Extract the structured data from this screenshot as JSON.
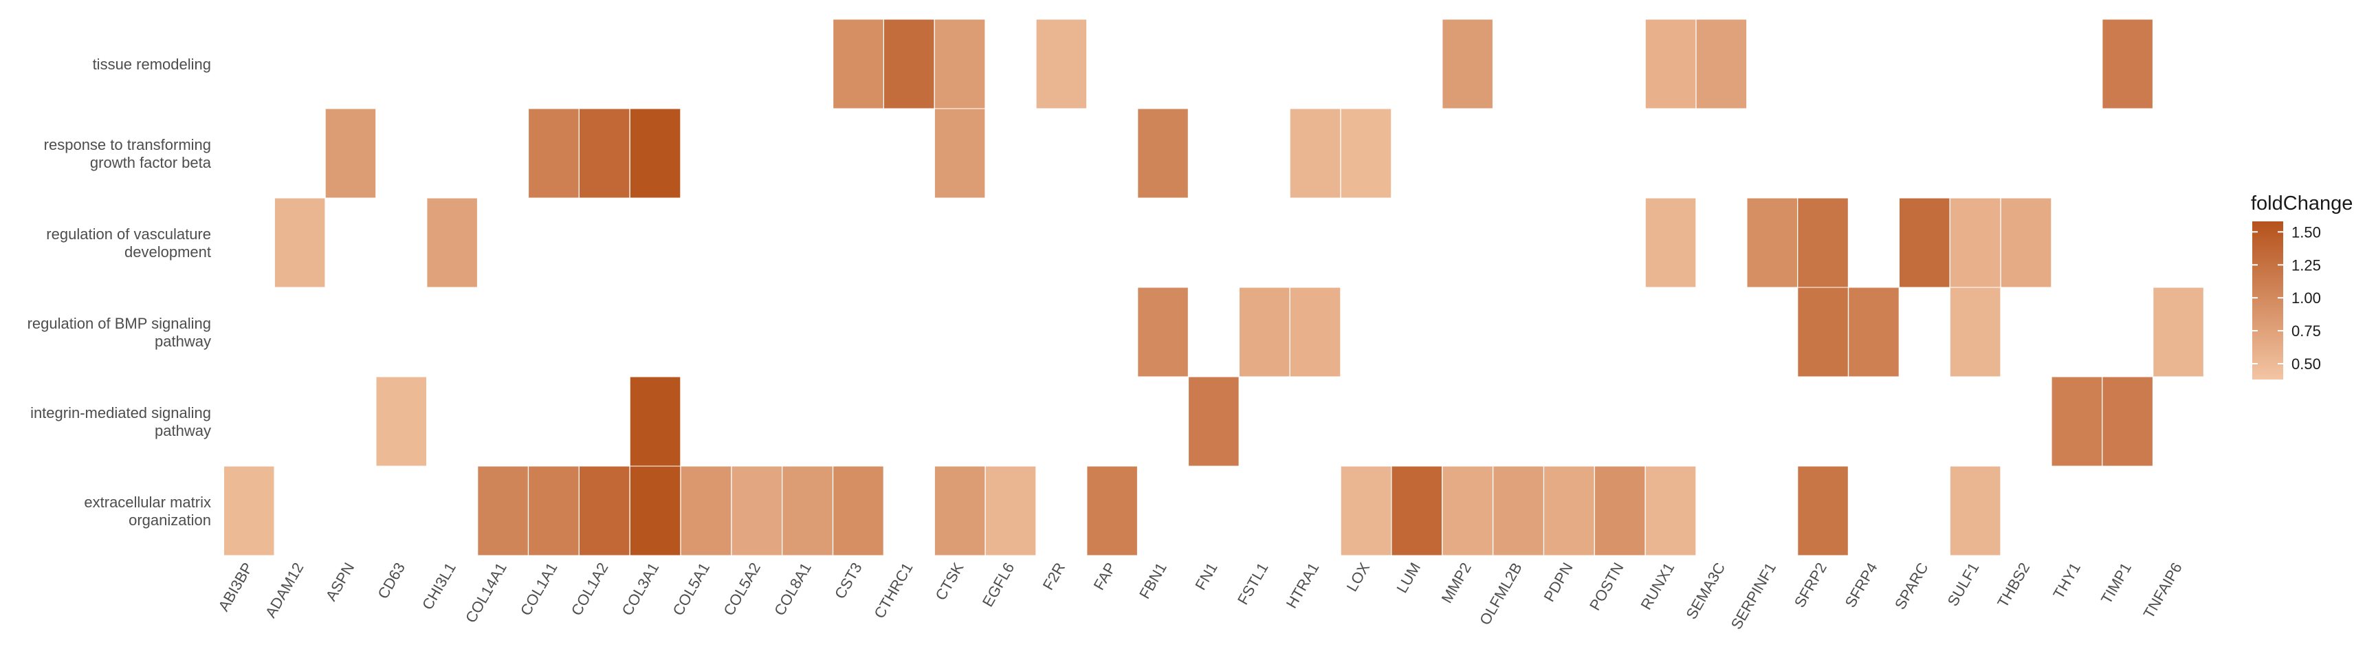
{
  "chart_data": {
    "type": "heatmap",
    "legend": {
      "title": "foldChange",
      "ticks": [
        0.5,
        0.75,
        1.0,
        1.25,
        1.5
      ],
      "tick_labels": [
        "0.50",
        "0.75",
        "1.00",
        "1.25",
        "1.50"
      ],
      "range": [
        0.38,
        1.58
      ],
      "low_color": "#f3c5a4",
      "high_color": "#b5521c",
      "placement": "right"
    },
    "genes": [
      "ABI3BP",
      "ADAM12",
      "ASPN",
      "CD63",
      "CHI3L1",
      "COL14A1",
      "COL1A1",
      "COL1A2",
      "COL3A1",
      "COL5A1",
      "COL5A2",
      "COL8A1",
      "CST3",
      "CTHRC1",
      "CTSK",
      "EGFL6",
      "F2R",
      "FAP",
      "FBN1",
      "FN1",
      "FSTL1",
      "HTRA1",
      "LOX",
      "LUM",
      "MMP2",
      "OLFML2B",
      "PDPN",
      "POSTN",
      "RUNX1",
      "SEMA3C",
      "SERPINF1",
      "SFRP2",
      "SFRP4",
      "SPARC",
      "SULF1",
      "THBS2",
      "THY1",
      "TIMP1",
      "TNFAIP6"
    ],
    "terms": [
      {
        "label": [
          "tissue remodeling"
        ],
        "cells": [
          [
            "CST3",
            0.95
          ],
          [
            "CTHRC1",
            1.3
          ],
          [
            "CTSK",
            0.8
          ],
          [
            "F2R",
            0.55
          ],
          [
            "MMP2",
            0.8
          ],
          [
            "RUNX1",
            0.6
          ],
          [
            "SEMA3C",
            0.75
          ],
          [
            "TIMP1",
            1.15
          ]
        ]
      },
      {
        "label": [
          "response to transforming",
          "growth factor beta"
        ],
        "cells": [
          [
            "ASPN",
            0.8
          ],
          [
            "COL1A1",
            1.1
          ],
          [
            "COL1A2",
            1.35
          ],
          [
            "COL3A1",
            1.55
          ],
          [
            "CTSK",
            0.8
          ],
          [
            "FBN1",
            1.05
          ],
          [
            "HTRA1",
            0.55
          ],
          [
            "LOX",
            0.5
          ]
        ]
      },
      {
        "label": [
          "regulation of vasculature",
          "development"
        ],
        "cells": [
          [
            "ADAM12",
            0.55
          ],
          [
            "CHI3L1",
            0.75
          ],
          [
            "RUNX1",
            0.55
          ],
          [
            "SERPINF1",
            0.95
          ],
          [
            "SFRP2",
            1.2
          ],
          [
            "SPARC",
            1.3
          ],
          [
            "SULF1",
            0.6
          ],
          [
            "THBS2",
            0.65
          ]
        ]
      },
      {
        "label": [
          "regulation of BMP signaling",
          "pathway"
        ],
        "cells": [
          [
            "FBN1",
            1.0
          ],
          [
            "FSTL1",
            0.65
          ],
          [
            "HTRA1",
            0.6
          ],
          [
            "SFRP2",
            1.2
          ],
          [
            "SFRP4",
            1.1
          ],
          [
            "SULF1",
            0.55
          ],
          [
            "TNFAIP6",
            0.55
          ]
        ]
      },
      {
        "label": [
          "integrin-mediated signaling",
          "pathway"
        ],
        "cells": [
          [
            "CD63",
            0.5
          ],
          [
            "COL3A1",
            1.55
          ],
          [
            "FN1",
            1.15
          ],
          [
            "THY1",
            1.1
          ],
          [
            "TIMP1",
            1.15
          ]
        ]
      },
      {
        "label": [
          "extracellular matrix",
          "organization"
        ],
        "cells": [
          [
            "ABI3BP",
            0.5
          ],
          [
            "COL14A1",
            1.05
          ],
          [
            "COL1A1",
            1.1
          ],
          [
            "COL1A2",
            1.35
          ],
          [
            "COL3A1",
            1.55
          ],
          [
            "COL5A1",
            0.85
          ],
          [
            "COL5A2",
            0.7
          ],
          [
            "COL8A1",
            0.8
          ],
          [
            "CST3",
            0.95
          ],
          [
            "CTSK",
            0.8
          ],
          [
            "EGFL6",
            0.55
          ],
          [
            "FAP",
            1.1
          ],
          [
            "LOX",
            0.55
          ],
          [
            "LUM",
            1.35
          ],
          [
            "MMP2",
            0.65
          ],
          [
            "OLFML2B",
            0.75
          ],
          [
            "PDPN",
            0.65
          ],
          [
            "POSTN",
            0.9
          ],
          [
            "RUNX1",
            0.55
          ],
          [
            "SFRP2",
            1.2
          ],
          [
            "SULF1",
            0.55
          ]
        ]
      }
    ]
  }
}
